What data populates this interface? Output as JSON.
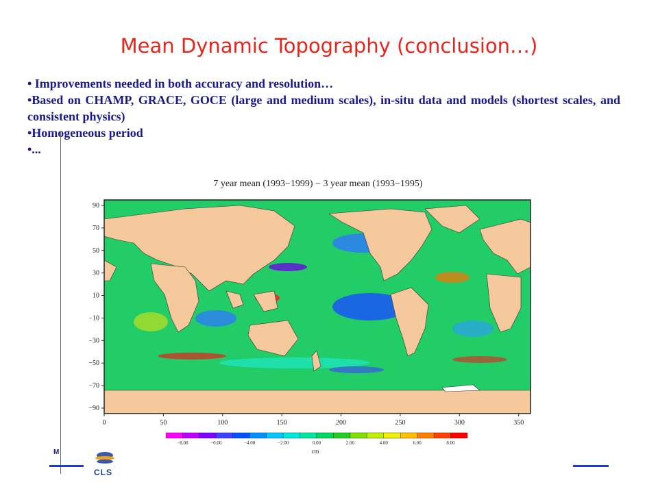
{
  "slide": {
    "title": "Mean Dynamic Topography (conclusion…)",
    "bullets": [
      "• Improvements needed in both accuracy and resolution…",
      "•Based on CHAMP, GRACE, GOCE (large and medium scales), in-situ data and models (shortest scales, and consistent physics)",
      "•Homogeneous period",
      "•..."
    ],
    "footer_left": "M",
    "logo_text": "CLS"
  },
  "map": {
    "title": "7 year mean (1993−1999) − 3 year mean (1993−1995)",
    "y_ticks": [
      "90",
      "70",
      "50",
      "30",
      "10",
      "−10",
      "−30",
      "−50",
      "−70",
      "−90"
    ],
    "x_ticks": [
      "0",
      "50",
      "100",
      "150",
      "200",
      "250",
      "300",
      "350"
    ],
    "colorbar_labels": [
      "−8.00",
      "−6.00",
      "−4.00",
      "−2.00",
      "0.00",
      "2.00",
      "4.00",
      "6.00",
      "8.00"
    ],
    "colorbar_unit": "cm",
    "colorbar_colors": [
      "#ff00ff",
      "#c000ff",
      "#8000ff",
      "#4040ff",
      "#0050ff",
      "#0090ff",
      "#00c8ff",
      "#00e8e0",
      "#00e8a0",
      "#00d860",
      "#20d020",
      "#80e000",
      "#c0f000",
      "#f0f000",
      "#ffc000",
      "#ff8000",
      "#ff4000",
      "#ff0000"
    ],
    "ocean_color": "#22cc66",
    "land_color": "#f5c99b"
  }
}
